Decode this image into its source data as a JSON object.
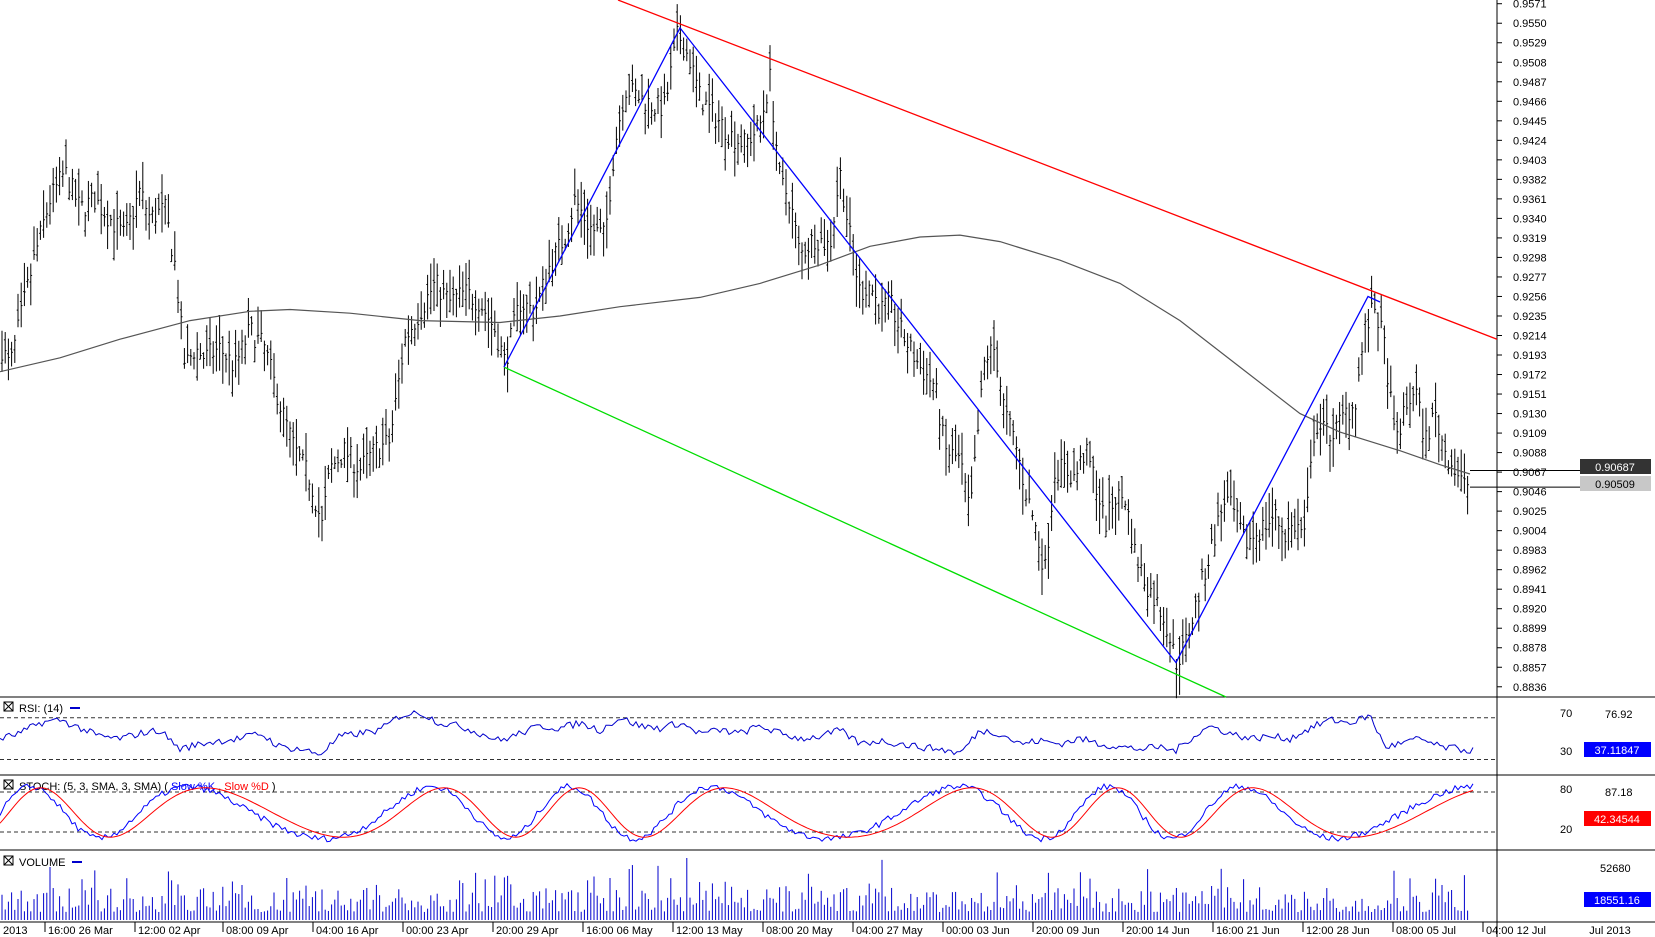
{
  "colors": {
    "background": "#ffffff",
    "price_bar": "#000000",
    "moving_average": "#555555",
    "resistance_line": "#ff0000",
    "support_line": "#00dd00",
    "zigzag": "#0000ff",
    "rsi_line": "#0000cc",
    "stoch_k": "#0000ff",
    "stoch_d": "#ff0000",
    "volume": "#0000cc",
    "badge_dark": "#333333",
    "badge_light": "#c8c8c8",
    "badge_red": "#ff0000",
    "badge_blue": "#0000ff"
  },
  "chart_data": [
    {
      "type": "ohlc",
      "panel": "price",
      "y_ticks": [
        "0.9571",
        "0.9550",
        "0.9529",
        "0.9508",
        "0.9487",
        "0.9466",
        "0.9445",
        "0.9424",
        "0.9403",
        "0.9382",
        "0.9361",
        "0.9340",
        "0.9319",
        "0.9298",
        "0.9277",
        "0.9256",
        "0.9235",
        "0.9214",
        "0.9193",
        "0.9172",
        "0.9151",
        "0.9130",
        "0.9109",
        "0.9088",
        "0.9067",
        "0.9046",
        "0.9025",
        "0.9004",
        "0.8983",
        "0.8962",
        "0.8941",
        "0.8920",
        "0.8899",
        "0.8878",
        "0.8857",
        "0.8836"
      ],
      "ylim": [
        0.8825,
        0.9575
      ],
      "x_ticks": [
        "2013",
        "16:00 26 Mar",
        "12:00 02 Apr",
        "08:00 09 Apr",
        "04:00 16 Apr",
        "00:00 23 Apr",
        "20:00 29 Apr",
        "16:00 06 May",
        "12:00 13 May",
        "08:00 20 May",
        "04:00 27 May",
        "00:00 03 Jun",
        "20:00 09 Jun",
        "20:00 14 Jun",
        "16:00 21 Jun",
        "12:00 28 Jun",
        "08:00 05 Jul",
        "04:00 12 Jul",
        "Jul 2013"
      ],
      "close_path": [
        [
          0,
          0.9205
        ],
        [
          10,
          0.918
        ],
        [
          20,
          0.923
        ],
        [
          35,
          0.93
        ],
        [
          50,
          0.936
        ],
        [
          65,
          0.939
        ],
        [
          80,
          0.935
        ],
        [
          95,
          0.936
        ],
        [
          110,
          0.934
        ],
        [
          125,
          0.932
        ],
        [
          140,
          0.937
        ],
        [
          150,
          0.934
        ],
        [
          165,
          0.935
        ],
        [
          175,
          0.929
        ],
        [
          185,
          0.918
        ],
        [
          195,
          0.92
        ],
        [
          205,
          0.919
        ],
        [
          220,
          0.92
        ],
        [
          235,
          0.918
        ],
        [
          250,
          0.922
        ],
        [
          265,
          0.92
        ],
        [
          280,
          0.914
        ],
        [
          295,
          0.909
        ],
        [
          310,
          0.906
        ],
        [
          322,
          0.901
        ],
        [
          330,
          0.907
        ],
        [
          345,
          0.909
        ],
        [
          360,
          0.907
        ],
        [
          375,
          0.909
        ],
        [
          390,
          0.91
        ],
        [
          405,
          0.921
        ],
        [
          420,
          0.924
        ],
        [
          435,
          0.927
        ],
        [
          450,
          0.925
        ],
        [
          465,
          0.926
        ],
        [
          480,
          0.925
        ],
        [
          495,
          0.922
        ],
        [
          505,
          0.9185
        ],
        [
          520,
          0.925
        ],
        [
          535,
          0.924
        ],
        [
          550,
          0.929
        ],
        [
          565,
          0.932
        ],
        [
          575,
          0.936
        ],
        [
          590,
          0.933
        ],
        [
          605,
          0.932
        ],
        [
          615,
          0.942
        ],
        [
          625,
          0.948
        ],
        [
          640,
          0.947
        ],
        [
          655,
          0.946
        ],
        [
          665,
          0.946
        ],
        [
          678,
          0.954
        ],
        [
          690,
          0.951
        ],
        [
          700,
          0.947
        ],
        [
          715,
          0.945
        ],
        [
          730,
          0.943
        ],
        [
          745,
          0.942
        ],
        [
          760,
          0.944
        ],
        [
          770,
          0.949
        ],
        [
          780,
          0.938
        ],
        [
          790,
          0.936
        ],
        [
          800,
          0.93
        ],
        [
          815,
          0.932
        ],
        [
          830,
          0.931
        ],
        [
          840,
          0.939
        ],
        [
          850,
          0.932
        ],
        [
          860,
          0.926
        ],
        [
          870,
          0.927
        ],
        [
          880,
          0.924
        ],
        [
          890,
          0.925
        ],
        [
          900,
          0.922
        ],
        [
          910,
          0.92
        ],
        [
          920,
          0.918
        ],
        [
          935,
          0.916
        ],
        [
          945,
          0.909
        ],
        [
          960,
          0.908
        ],
        [
          970,
          0.902
        ],
        [
          985,
          0.919
        ],
        [
          995,
          0.92
        ],
        [
          1005,
          0.913
        ],
        [
          1015,
          0.91
        ],
        [
          1025,
          0.905
        ],
        [
          1035,
          0.901
        ],
        [
          1045,
          0.896
        ],
        [
          1055,
          0.907
        ],
        [
          1065,
          0.907
        ],
        [
          1075,
          0.906
        ],
        [
          1085,
          0.909
        ],
        [
          1095,
          0.906
        ],
        [
          1105,
          0.901
        ],
        [
          1115,
          0.904
        ],
        [
          1125,
          0.904
        ],
        [
          1135,
          0.898
        ],
        [
          1145,
          0.895
        ],
        [
          1155,
          0.893
        ],
        [
          1165,
          0.891
        ],
        [
          1176,
          0.8862
        ],
        [
          1185,
          0.888
        ],
        [
          1195,
          0.892
        ],
        [
          1205,
          0.896
        ],
        [
          1215,
          0.9
        ],
        [
          1225,
          0.904
        ],
        [
          1235,
          0.902
        ],
        [
          1245,
          0.899
        ],
        [
          1255,
          0.9
        ],
        [
          1265,
          0.901
        ],
        [
          1275,
          0.902
        ],
        [
          1285,
          0.9
        ],
        [
          1295,
          0.901
        ],
        [
          1305,
          0.9
        ],
        [
          1315,
          0.912
        ],
        [
          1325,
          0.911
        ],
        [
          1335,
          0.911
        ],
        [
          1345,
          0.913
        ],
        [
          1355,
          0.914
        ],
        [
          1365,
          0.922
        ],
        [
          1375,
          0.9245
        ],
        [
          1385,
          0.92
        ],
        [
          1395,
          0.91
        ],
        [
          1405,
          0.913
        ],
        [
          1415,
          0.916
        ],
        [
          1425,
          0.91
        ],
        [
          1435,
          0.913
        ],
        [
          1445,
          0.909
        ],
        [
          1455,
          0.907
        ],
        [
          1465,
          0.905
        ],
        [
          1470,
          0.906
        ]
      ],
      "moving_average_path": [
        [
          0,
          0.9175
        ],
        [
          60,
          0.919
        ],
        [
          120,
          0.921
        ],
        [
          190,
          0.923
        ],
        [
          250,
          0.924
        ],
        [
          290,
          0.9242
        ],
        [
          350,
          0.9238
        ],
        [
          420,
          0.923
        ],
        [
          500,
          0.9228
        ],
        [
          560,
          0.9235
        ],
        [
          620,
          0.9245
        ],
        [
          700,
          0.9255
        ],
        [
          760,
          0.927
        ],
        [
          820,
          0.929
        ],
        [
          870,
          0.931
        ],
        [
          920,
          0.932
        ],
        [
          960,
          0.9322
        ],
        [
          1000,
          0.9315
        ],
        [
          1060,
          0.9295
        ],
        [
          1120,
          0.927
        ],
        [
          1180,
          0.923
        ],
        [
          1240,
          0.918
        ],
        [
          1300,
          0.913
        ],
        [
          1340,
          0.911
        ],
        [
          1400,
          0.909
        ],
        [
          1440,
          0.9075
        ],
        [
          1470,
          0.9065
        ]
      ],
      "trendlines": [
        {
          "name": "resistance",
          "from": [
            618,
            0.9575
          ],
          "to": [
            1497,
            0.921
          ]
        },
        {
          "name": "support",
          "from": [
            504,
            0.918
          ],
          "to": [
            1226,
            0.8825
          ]
        }
      ],
      "zigzag": [
        [
          504,
          0.918
        ],
        [
          680,
          0.9545
        ],
        [
          1176,
          0.8862
        ],
        [
          1368,
          0.9256
        ],
        [
          1380,
          0.925
        ]
      ],
      "price_badges": [
        "0.90687",
        "0.90509"
      ]
    },
    {
      "type": "line",
      "panel": "rsi",
      "label": "RSI: (14)",
      "levels": [
        "70",
        "30"
      ],
      "right_ticks": [
        "76.92"
      ],
      "value_badge": "37.11847",
      "ylim": [
        20,
        85
      ],
      "points": [
        [
          0,
          50
        ],
        [
          20,
          55
        ],
        [
          40,
          65
        ],
        [
          60,
          68
        ],
        [
          80,
          60
        ],
        [
          100,
          52
        ],
        [
          120,
          50
        ],
        [
          140,
          55
        ],
        [
          160,
          58
        ],
        [
          180,
          40
        ],
        [
          200,
          45
        ],
        [
          220,
          48
        ],
        [
          240,
          50
        ],
        [
          260,
          55
        ],
        [
          280,
          42
        ],
        [
          300,
          40
        ],
        [
          320,
          35
        ],
        [
          340,
          52
        ],
        [
          360,
          55
        ],
        [
          380,
          58
        ],
        [
          400,
          72
        ],
        [
          420,
          75
        ],
        [
          440,
          65
        ],
        [
          460,
          62
        ],
        [
          480,
          55
        ],
        [
          500,
          48
        ],
        [
          520,
          55
        ],
        [
          540,
          62
        ],
        [
          560,
          60
        ],
        [
          580,
          65
        ],
        [
          600,
          58
        ],
        [
          620,
          70
        ],
        [
          640,
          62
        ],
        [
          660,
          60
        ],
        [
          680,
          65
        ],
        [
          700,
          55
        ],
        [
          720,
          58
        ],
        [
          740,
          55
        ],
        [
          760,
          62
        ],
        [
          780,
          55
        ],
        [
          800,
          50
        ],
        [
          820,
          52
        ],
        [
          840,
          58
        ],
        [
          860,
          45
        ],
        [
          880,
          48
        ],
        [
          900,
          45
        ],
        [
          920,
          42
        ],
        [
          940,
          40
        ],
        [
          960,
          36
        ],
        [
          980,
          58
        ],
        [
          1000,
          55
        ],
        [
          1020,
          45
        ],
        [
          1040,
          48
        ],
        [
          1060,
          45
        ],
        [
          1080,
          50
        ],
        [
          1100,
          45
        ],
        [
          1120,
          42
        ],
        [
          1140,
          40
        ],
        [
          1160,
          42
        ],
        [
          1175,
          38
        ],
        [
          1190,
          50
        ],
        [
          1210,
          62
        ],
        [
          1230,
          55
        ],
        [
          1250,
          50
        ],
        [
          1270,
          52
        ],
        [
          1290,
          50
        ],
        [
          1310,
          60
        ],
        [
          1330,
          68
        ],
        [
          1350,
          65
        ],
        [
          1370,
          72
        ],
        [
          1385,
          42
        ],
        [
          1400,
          45
        ],
        [
          1420,
          50
        ],
        [
          1440,
          42
        ],
        [
          1460,
          40
        ],
        [
          1475,
          38
        ]
      ]
    },
    {
      "type": "line",
      "panel": "stoch",
      "label_prefix": "STOCH: (5, 3, SMA, 3, SMA)",
      "k_label": "Slow %K",
      "d_label": "Slow %D",
      "levels": [
        "80",
        "20"
      ],
      "right_ticks": [
        "87.18"
      ],
      "value_badge": "42.34544",
      "ylim": [
        0,
        100
      ]
    },
    {
      "type": "bar",
      "panel": "volume",
      "label": "VOLUME",
      "right_ticks": [
        "52680"
      ],
      "value_badge": "18551.16",
      "ylim": [
        0,
        60000
      ]
    }
  ]
}
